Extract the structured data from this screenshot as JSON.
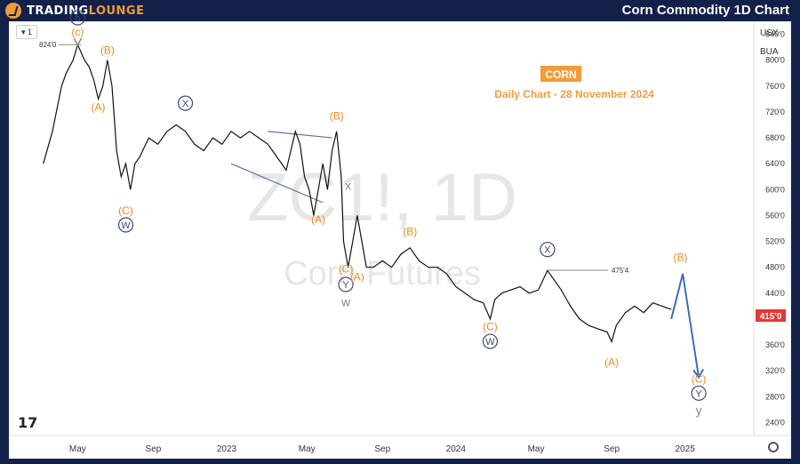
{
  "header": {
    "brand_prefix": "TRADING",
    "brand_suffix": "LOUNGE",
    "title": "Corn Commodity 1D Chart"
  },
  "toolbar": {
    "interval_label": "1"
  },
  "price_axis": {
    "currency": "USX",
    "unit": "BUA"
  },
  "chart_data": {
    "type": "line",
    "title": "CORN",
    "subtitle": "Daily Chart - 28 November 2024",
    "watermark_symbol": "ZC1!, 1D",
    "watermark_name": "Corn Futures",
    "y_ticks": [
      "840'0",
      "800'0",
      "760'0",
      "720'0",
      "680'0",
      "640'0",
      "600'0",
      "560'0",
      "520'0",
      "480'0",
      "440'0",
      "400'0",
      "360'0",
      "320'0",
      "280'0",
      "240'0"
    ],
    "x_ticks": [
      "May",
      "Sep",
      "2023",
      "May",
      "Sep",
      "2024",
      "May",
      "Sep",
      "2025"
    ],
    "last_price": "415'0",
    "ylim": [
      220,
      860
    ],
    "series": [
      {
        "values": [
          [
            2022.2,
            640
          ],
          [
            2022.24,
            690
          ],
          [
            2022.28,
            760
          ],
          [
            2022.3,
            780
          ],
          [
            2022.33,
            800
          ],
          [
            2022.35,
            824
          ],
          [
            2022.38,
            800
          ],
          [
            2022.4,
            790
          ],
          [
            2022.42,
            770
          ],
          [
            2022.44,
            740
          ],
          [
            2022.46,
            760
          ],
          [
            2022.48,
            800
          ],
          [
            2022.5,
            760
          ],
          [
            2022.52,
            660
          ],
          [
            2022.54,
            620
          ],
          [
            2022.56,
            640
          ],
          [
            2022.58,
            600
          ],
          [
            2022.6,
            640
          ],
          [
            2022.62,
            650
          ],
          [
            2022.66,
            680
          ],
          [
            2022.7,
            670
          ],
          [
            2022.74,
            690
          ],
          [
            2022.78,
            700
          ],
          [
            2022.82,
            690
          ],
          [
            2022.86,
            670
          ],
          [
            2022.9,
            660
          ],
          [
            2022.94,
            680
          ],
          [
            2022.98,
            670
          ],
          [
            2023.02,
            690
          ],
          [
            2023.06,
            680
          ],
          [
            2023.1,
            690
          ],
          [
            2023.14,
            680
          ],
          [
            2023.18,
            670
          ],
          [
            2023.22,
            650
          ],
          [
            2023.26,
            630
          ],
          [
            2023.3,
            690
          ],
          [
            2023.32,
            670
          ],
          [
            2023.34,
            620
          ],
          [
            2023.36,
            600
          ],
          [
            2023.38,
            560
          ],
          [
            2023.4,
            600
          ],
          [
            2023.42,
            640
          ],
          [
            2023.44,
            600
          ],
          [
            2023.46,
            660
          ],
          [
            2023.48,
            690
          ],
          [
            2023.5,
            620
          ],
          [
            2023.51,
            520
          ],
          [
            2023.53,
            480
          ],
          [
            2023.55,
            520
          ],
          [
            2023.57,
            560
          ],
          [
            2023.59,
            520
          ],
          [
            2023.61,
            480
          ],
          [
            2023.64,
            480
          ],
          [
            2023.68,
            490
          ],
          [
            2023.72,
            480
          ],
          [
            2023.76,
            500
          ],
          [
            2023.8,
            510
          ],
          [
            2023.84,
            490
          ],
          [
            2023.88,
            480
          ],
          [
            2023.92,
            480
          ],
          [
            2023.96,
            470
          ],
          [
            2024.0,
            450
          ],
          [
            2024.04,
            440
          ],
          [
            2024.08,
            430
          ],
          [
            2024.12,
            425
          ],
          [
            2024.15,
            400
          ],
          [
            2024.17,
            430
          ],
          [
            2024.2,
            440
          ],
          [
            2024.24,
            445
          ],
          [
            2024.28,
            450
          ],
          [
            2024.32,
            440
          ],
          [
            2024.36,
            445
          ],
          [
            2024.4,
            475
          ],
          [
            2024.43,
            460
          ],
          [
            2024.46,
            445
          ],
          [
            2024.5,
            420
          ],
          [
            2024.54,
            400
          ],
          [
            2024.58,
            390
          ],
          [
            2024.62,
            385
          ],
          [
            2024.66,
            380
          ],
          [
            2024.68,
            365
          ],
          [
            2024.7,
            390
          ],
          [
            2024.74,
            410
          ],
          [
            2024.78,
            420
          ],
          [
            2024.82,
            410
          ],
          [
            2024.86,
            425
          ],
          [
            2024.9,
            420
          ],
          [
            2024.94,
            415
          ]
        ]
      }
    ],
    "projection": [
      [
        2024.94,
        400
      ],
      [
        2024.99,
        470
      ],
      [
        2025.06,
        310
      ]
    ],
    "price_marks": [
      {
        "label": "824'0",
        "x": 2022.35,
        "y": 824
      },
      {
        "label": "475'4",
        "x": 2024.4,
        "y": 475.5
      }
    ],
    "trendlines": [
      [
        [
          2023.18,
          690
        ],
        [
          2023.46,
          680
        ]
      ],
      [
        [
          2023.02,
          640
        ],
        [
          2023.42,
          580
        ]
      ]
    ],
    "wave_labels": [
      {
        "text": "b",
        "style": "circled-navy",
        "x": 2022.35,
        "y": 860
      },
      {
        "text": "(c)",
        "style": "orange",
        "x": 2022.35,
        "y": 838
      },
      {
        "text": "(B)",
        "style": "orange",
        "x": 2022.48,
        "y": 810
      },
      {
        "text": "(A)",
        "style": "orange",
        "x": 2022.44,
        "y": 722
      },
      {
        "text": "(C)",
        "style": "orange",
        "x": 2022.56,
        "y": 562
      },
      {
        "text": "W",
        "style": "circled-navy",
        "x": 2022.56,
        "y": 540
      },
      {
        "text": "X",
        "style": "circled-navy",
        "x": 2022.82,
        "y": 728
      },
      {
        "text": "(B)",
        "style": "orange",
        "x": 2023.48,
        "y": 708
      },
      {
        "text": "(A)",
        "style": "orange",
        "x": 2023.4,
        "y": 548
      },
      {
        "text": "x",
        "style": "gray",
        "x": 2023.53,
        "y": 600
      },
      {
        "text": "(C)",
        "style": "orange",
        "x": 2023.52,
        "y": 472
      },
      {
        "text": "Y",
        "style": "circled-navy",
        "x": 2023.52,
        "y": 448
      },
      {
        "text": "w",
        "style": "gray",
        "x": 2023.52,
        "y": 420
      },
      {
        "text": "(A)",
        "style": "orange",
        "x": 2023.57,
        "y": 460
      },
      {
        "text": "(B)",
        "style": "orange",
        "x": 2023.8,
        "y": 530
      },
      {
        "text": "(C)",
        "style": "orange",
        "x": 2024.15,
        "y": 383
      },
      {
        "text": "W",
        "style": "circled-navy",
        "x": 2024.15,
        "y": 360
      },
      {
        "text": "X",
        "style": "circled-navy",
        "x": 2024.4,
        "y": 502
      },
      {
        "text": "(A)",
        "style": "orange",
        "x": 2024.68,
        "y": 328
      },
      {
        "text": "(B)",
        "style": "orange",
        "x": 2024.98,
        "y": 490
      },
      {
        "text": "(C)",
        "style": "orange",
        "x": 2025.06,
        "y": 302
      },
      {
        "text": "Y",
        "style": "circled-navy",
        "x": 2025.06,
        "y": 280
      },
      {
        "text": "y",
        "style": "gray",
        "x": 2025.06,
        "y": 252
      }
    ]
  }
}
